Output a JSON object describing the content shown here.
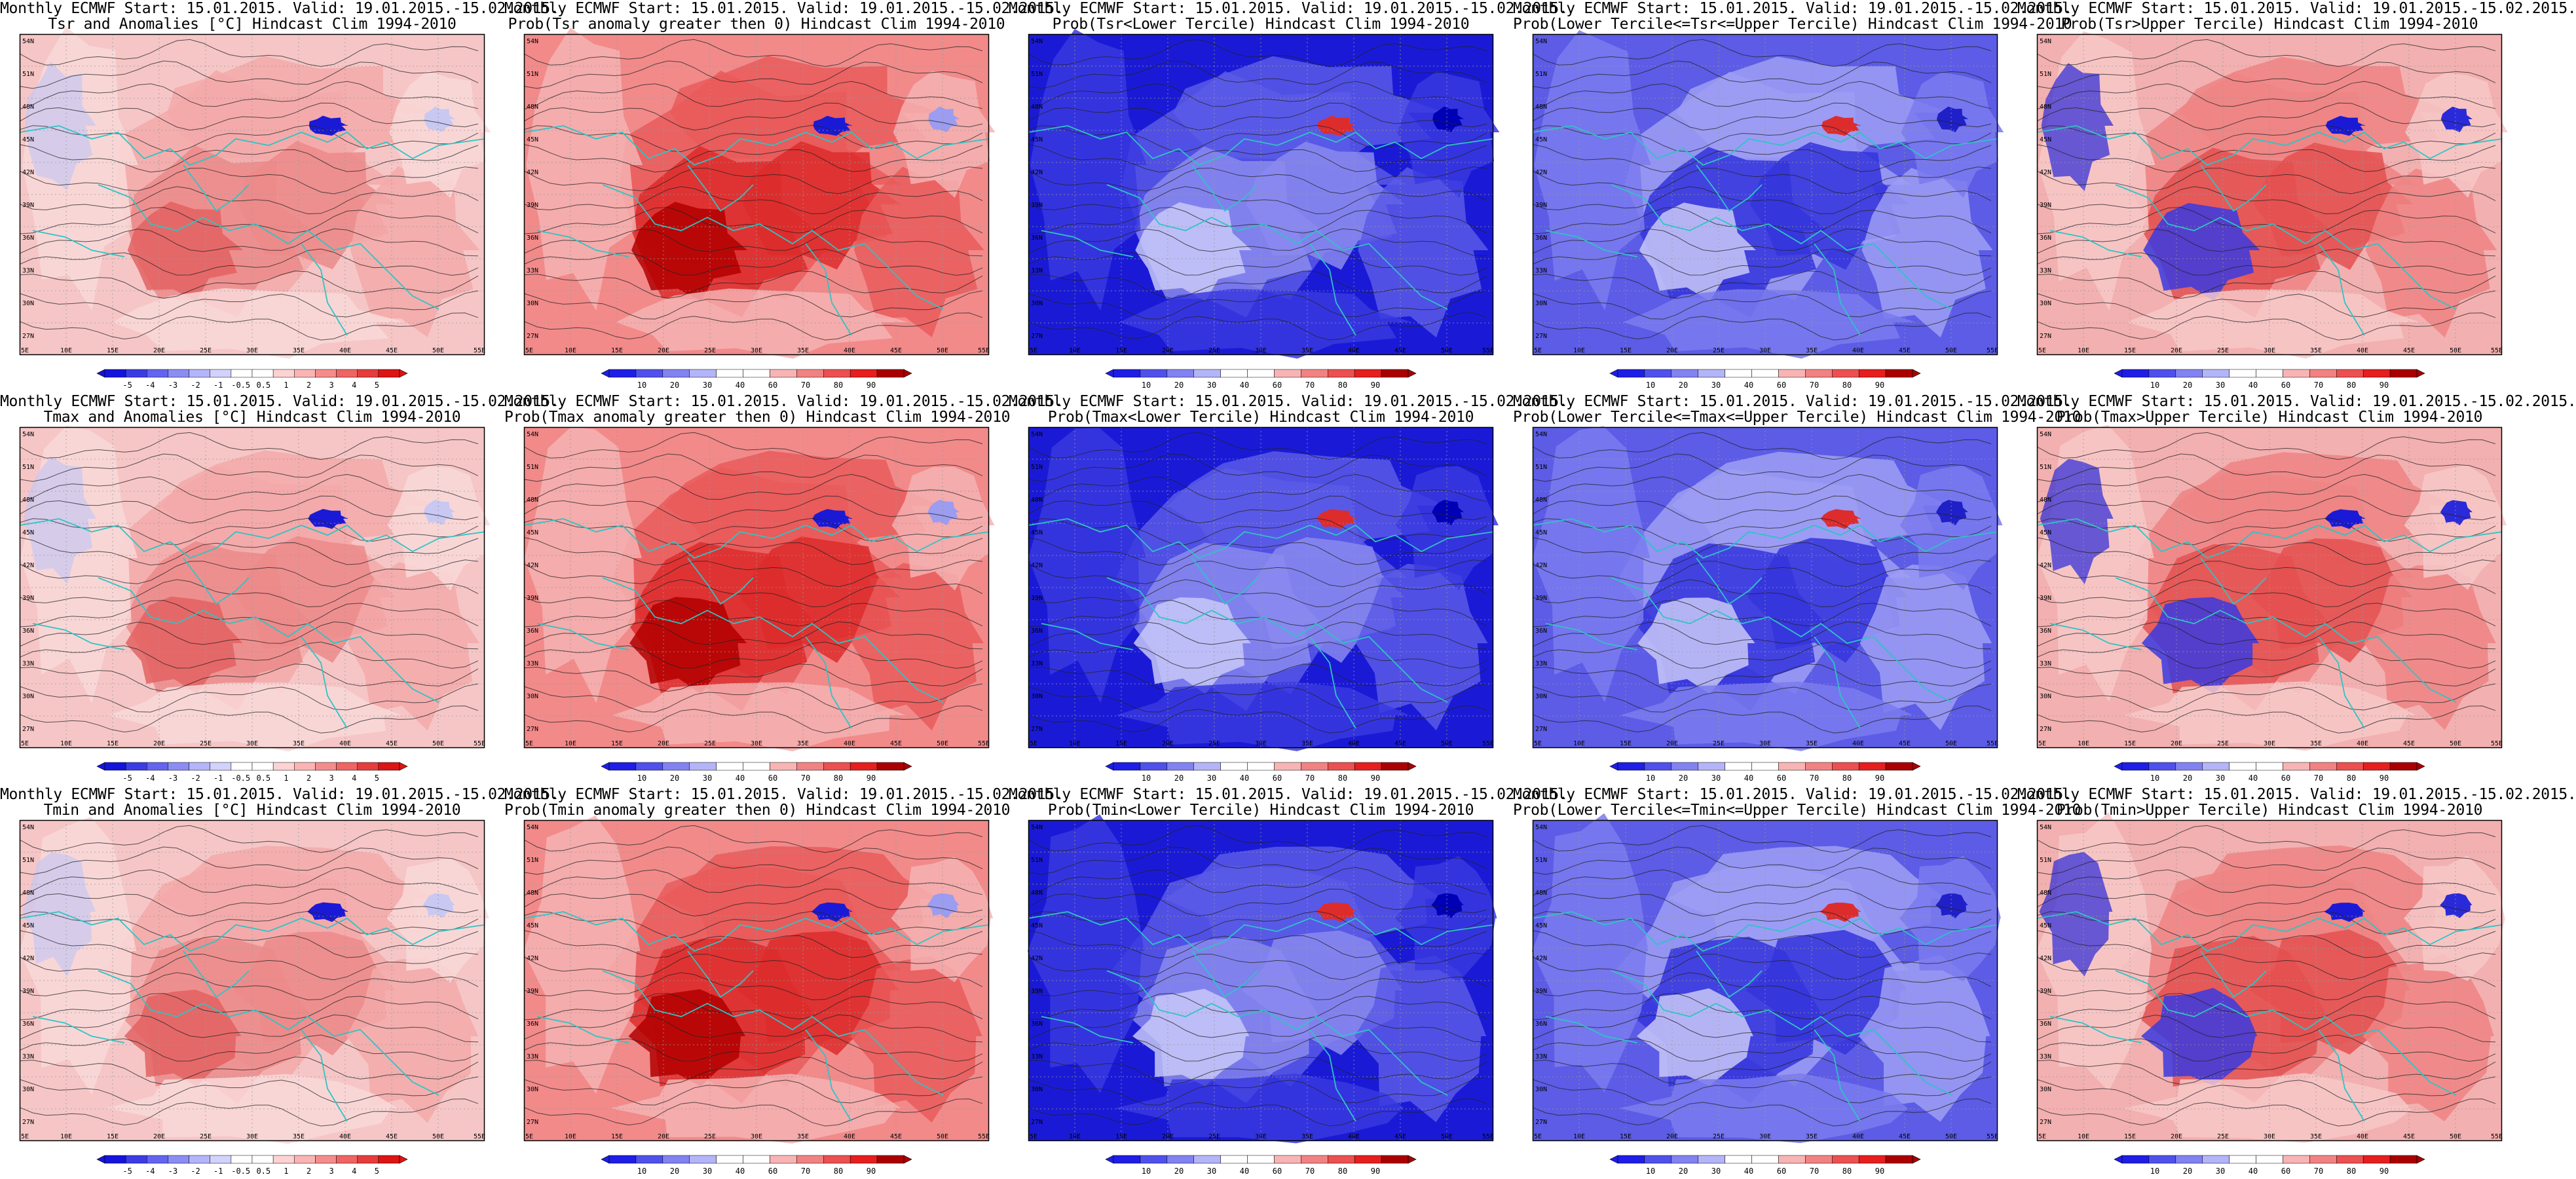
{
  "colors": {
    "anomaly_scale": [
      "#1414dc",
      "#3c3ce6",
      "#6464f0",
      "#8c8cf5",
      "#b4b4fa",
      "#d2d2fc",
      "#ffffff",
      "#ffffff",
      "#fcd2d2",
      "#fab4b4",
      "#f58c8c",
      "#f06464",
      "#e63c3c",
      "#dc1414"
    ],
    "prob_scale": [
      "#1e1ee6",
      "#5050ec",
      "#8282f2",
      "#b4b4f8",
      "#ffffff",
      "#ffffff",
      "#f8b4b4",
      "#f28282",
      "#ec5050",
      "#e61e1e",
      "#aa0000"
    ],
    "coast": "#2ec4c4",
    "contour": "#222222"
  },
  "map_axes": {
    "lon_ticks": [
      "5E",
      "10E",
      "15E",
      "20E",
      "25E",
      "30E",
      "35E",
      "40E",
      "45E",
      "50E",
      "55E"
    ],
    "lat_ticks": [
      "54N",
      "51N",
      "48N",
      "45N",
      "42N",
      "39N",
      "36N",
      "33N",
      "30N",
      "27N"
    ]
  },
  "colorbars": {
    "anomaly_labels": [
      "-5",
      "-4",
      "-3",
      "-2",
      "-1",
      "-0.5",
      "0.5",
      "1",
      "2",
      "3",
      "4",
      "5"
    ],
    "prob_labels": [
      "10",
      "20",
      "30",
      "40",
      "60",
      "70",
      "80",
      "90"
    ]
  },
  "rows": [
    {
      "panels": [
        {
          "line1": "Monthly ECMWF Start: 15.01.2015. Valid: 19.01.2015.-15.02.2015.",
          "line2": "Tsr and Anomalies [°C] Hindcast Clim 1994-2010",
          "kind": "anomaly"
        },
        {
          "line1": "Monthly ECMWF Start: 15.01.2015. Valid: 19.01.2015.-15.02.2015.",
          "line2": "Prob(Tsr anomaly greater then 0) Hindcast Clim 1994-2010",
          "kind": "pos"
        },
        {
          "line1": "Monthly ECMWF Start: 15.01.2015. Valid: 19.01.2015.-15.02.2015.",
          "line2": "Prob(Tsr<Lower Tercile) Hindcast Clim 1994-2010",
          "kind": "low"
        },
        {
          "line1": "Monthly ECMWF Start: 15.01.2015. Valid: 19.01.2015.-15.02.2015.",
          "line2": "Prob(Lower Tercile<=Tsr<=Upper Tercile) Hindcast Clim 1994-2010",
          "kind": "mid"
        },
        {
          "line1": "Monthly ECMWF Start: 15.01.2015. Valid: 19.01.2015.-15.02.2015.",
          "line2": "Prob(Tsr>Upper Tercile) Hindcast Clim 1994-2010",
          "kind": "high"
        }
      ]
    },
    {
      "panels": [
        {
          "line1": "Monthly ECMWF Start: 15.01.2015. Valid: 19.01.2015.-15.02.2015.",
          "line2": "Tmax and Anomalies [°C] Hindcast Clim 1994-2010",
          "kind": "anomaly"
        },
        {
          "line1": "Monthly ECMWF Start: 15.01.2015. Valid: 19.01.2015.-15.02.2015.",
          "line2": "Prob(Tmax anomaly greater then 0) Hindcast Clim 1994-2010",
          "kind": "pos"
        },
        {
          "line1": "Monthly ECMWF Start: 15.01.2015. Valid: 19.01.2015.-15.02.2015.",
          "line2": "Prob(Tmax<Lower Tercile) Hindcast Clim 1994-2010",
          "kind": "low"
        },
        {
          "line1": "Monthly ECMWF Start: 15.01.2015. Valid: 19.01.2015.-15.02.2015.",
          "line2": "Prob(Lower Tercile<=Tmax<=Upper Tercile) Hindcast Clim 1994-2010",
          "kind": "mid"
        },
        {
          "line1": "Monthly ECMWF Start: 15.01.2015. Valid: 19.01.2015.-15.02.2015.",
          "line2": "Prob(Tmax>Upper Tercile) Hindcast Clim 1994-2010",
          "kind": "high"
        }
      ]
    },
    {
      "panels": [
        {
          "line1": "Monthly ECMWF Start: 15.01.2015. Valid: 19.01.2015.-15.02.2015.",
          "line2": "Tmin and Anomalies [°C] Hindcast Clim 1994-2010",
          "kind": "anomaly"
        },
        {
          "line1": "Monthly ECMWF Start: 15.01.2015. Valid: 19.01.2015.-15.02.2015.",
          "line2": "Prob(Tmin anomaly greater then 0) Hindcast Clim 1994-2010",
          "kind": "pos"
        },
        {
          "line1": "Monthly ECMWF Start: 15.01.2015. Valid: 19.01.2015.-15.02.2015.",
          "line2": "Prob(Tmin<Lower Tercile) Hindcast Clim 1994-2010",
          "kind": "low"
        },
        {
          "line1": "Monthly ECMWF Start: 15.01.2015. Valid: 19.01.2015.-15.02.2015.",
          "line2": "Prob(Lower Tercile<=Tmin<=Upper Tercile) Hindcast Clim 1994-2010",
          "kind": "mid"
        },
        {
          "line1": "Monthly ECMWF Start: 15.01.2015. Valid: 19.01.2015.-15.02.2015.",
          "line2": "Prob(Tmin>Upper Tercile) Hindcast Clim 1994-2010",
          "kind": "high"
        }
      ]
    }
  ]
}
